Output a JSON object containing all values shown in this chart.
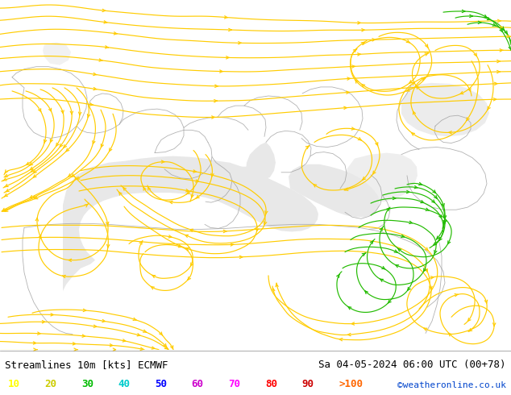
{
  "title_left": "Streamlines 10m [kts] ECMWF",
  "title_right": "Sa 04-05-2024 06:00 UTC (00+78)",
  "credit": "©weatheronline.co.uk",
  "bg_color": "#bbf0a0",
  "sea_color": "#e8e8e8",
  "border_color": "#999999",
  "yellow_color": "#ffcc00",
  "green_color": "#22bb00",
  "fig_width": 6.34,
  "fig_height": 4.9,
  "dpi": 100,
  "bottom_bar_color": "#ffffff",
  "legend_labels": [
    "10",
    "20",
    "30",
    "40",
    "50",
    "60",
    "70",
    "80",
    "90",
    ">100"
  ],
  "legend_colors": [
    "#ffff00",
    "#cccc00",
    "#00bb00",
    "#00cccc",
    "#0000ff",
    "#cc00cc",
    "#ff00ff",
    "#ff0000",
    "#cc0000",
    "#ff6600"
  ],
  "title_fontsize": 9,
  "credit_fontsize": 8,
  "legend_fontsize": 9
}
